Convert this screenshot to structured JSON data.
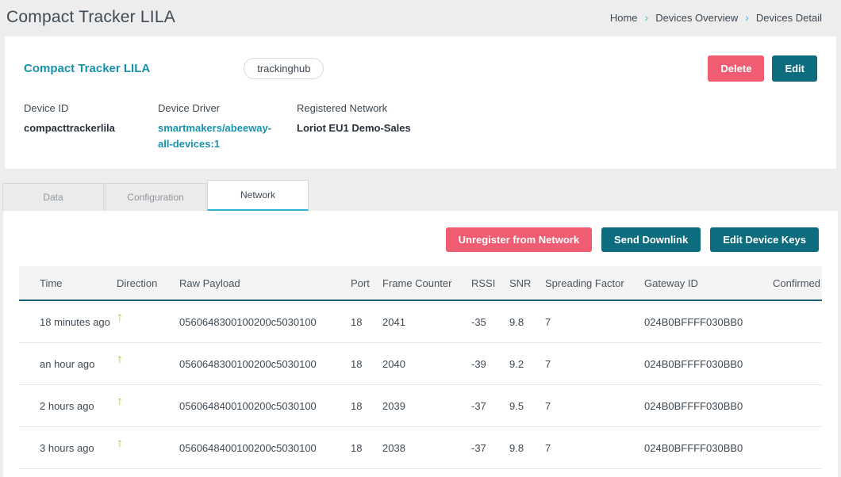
{
  "page": {
    "title": "Compact Tracker LILA",
    "breadcrumb": [
      {
        "label": "Home"
      },
      {
        "label": "Devices Overview"
      },
      {
        "label": "Devices Detail"
      }
    ]
  },
  "device_card": {
    "title": "Compact Tracker LILA",
    "tag": "trackinghub",
    "delete_label": "Delete",
    "edit_label": "Edit",
    "fields": [
      {
        "label": "Device ID",
        "value": "compacttrackerlila"
      },
      {
        "label": "Device Driver",
        "value": "smartmakers/abeeway-all-devices:1"
      },
      {
        "label": "Registered Network",
        "value": "Loriot EU1 Demo-Sales"
      }
    ]
  },
  "tabs": [
    {
      "label": "Data",
      "active": false
    },
    {
      "label": "Configuration",
      "active": false
    },
    {
      "label": "Network",
      "active": true
    }
  ],
  "actions": {
    "unregister_label": "Unregister from Network",
    "send_downlink_label": "Send Downlink",
    "edit_keys_label": "Edit Device Keys"
  },
  "table": {
    "columns": [
      "Time",
      "Direction",
      "Raw Payload",
      "Port",
      "Frame Counter",
      "RSSI",
      "SNR",
      "Spreading Factor",
      "Gateway ID",
      "Confirmed"
    ],
    "direction_up_glyph": "↑",
    "rows": [
      {
        "time": "18 minutes ago",
        "direction": "up",
        "raw_payload": "0560648300100200c5030100",
        "port": "18",
        "frame_counter": "2041",
        "rssi": "-35",
        "snr": "9.8",
        "spreading_factor": "7",
        "gateway_id": "024B0BFFFF030BB0",
        "confirmed": ""
      },
      {
        "time": "an hour ago",
        "direction": "up",
        "raw_payload": "0560648300100200c5030100",
        "port": "18",
        "frame_counter": "2040",
        "rssi": "-39",
        "snr": "9.2",
        "spreading_factor": "7",
        "gateway_id": "024B0BFFFF030BB0",
        "confirmed": ""
      },
      {
        "time": "2 hours ago",
        "direction": "up",
        "raw_payload": "0560648400100200c5030100",
        "port": "18",
        "frame_counter": "2039",
        "rssi": "-37",
        "snr": "9.5",
        "spreading_factor": "7",
        "gateway_id": "024B0BFFFF030BB0",
        "confirmed": ""
      },
      {
        "time": "3 hours ago",
        "direction": "up",
        "raw_payload": "0560648400100200c5030100",
        "port": "18",
        "frame_counter": "2038",
        "rssi": "-37",
        "snr": "9.8",
        "spreading_factor": "7",
        "gateway_id": "024B0BFFFF030BB0",
        "confirmed": ""
      }
    ]
  },
  "colors": {
    "accent_teal": "#1591ac",
    "button_teal": "#0d6d7f",
    "danger_pink": "#f05c72",
    "tab_active_underline": "#2fb4d4",
    "table_header_border": "#19627c",
    "direction_up_green": "#9cc23d"
  }
}
